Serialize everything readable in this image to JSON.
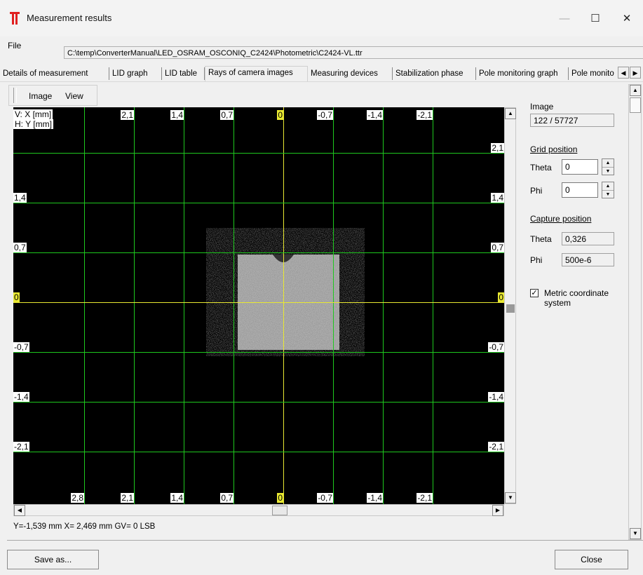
{
  "window": {
    "title": "Measurement results",
    "minimize_glyph": "—",
    "maximize_glyph": "☐",
    "close_glyph": "✕"
  },
  "file": {
    "label": "File",
    "path": "C:\\temp\\ConverterManual\\LED_OSRAM_OSCONIQ_C2424\\Photometric\\C2424-VL.ttr"
  },
  "tabs": [
    {
      "label": "Details of measurement"
    },
    {
      "label": "LID graph"
    },
    {
      "label": "LID table"
    },
    {
      "label": "Rays of camera images"
    },
    {
      "label": "Measuring devices"
    },
    {
      "label": "Stabilization phase"
    },
    {
      "label": "Pole monitoring graph"
    },
    {
      "label": "Pole monito"
    }
  ],
  "active_tab_index": 3,
  "menu": {
    "image": "Image",
    "view": "View"
  },
  "image_view": {
    "axis_v": "V: X [mm]",
    "axis_h": "H: Y [mm]",
    "top_labels": [
      "2,1",
      "1,4",
      "0,7",
      "0",
      "-0,7",
      "-1,4",
      "-2,1"
    ],
    "bottom_labels": [
      "2,8",
      "2,1",
      "1,4",
      "0,7",
      "0",
      "-0,7",
      "-1,4",
      "-2,1"
    ],
    "left_labels": [
      "1,4",
      "0,7",
      "0",
      "-0,7",
      "-1,4",
      "-2,1"
    ],
    "right_labels": [
      "2,1",
      "1,4",
      "0,7",
      "0",
      "-0,7",
      "-1,4",
      "-2,1"
    ],
    "grid_color": "#1ec81e",
    "axis_color": "#e8e832"
  },
  "status": {
    "text": "Y=-1,539 mm  X= 2,469 mm  GV= 0 LSB"
  },
  "panel": {
    "image_label": "Image",
    "image_value": "122 / 57727",
    "grid_position_label": "Grid position",
    "grid_theta_label": "Theta",
    "grid_theta_value": "0",
    "grid_phi_label": "Phi",
    "grid_phi_value": "0",
    "capture_position_label": "Capture position",
    "capture_theta_label": "Theta",
    "capture_theta_value": "0,326",
    "capture_phi_label": "Phi",
    "capture_phi_value": "500e-6",
    "metric_label": "Metric coordinate system",
    "metric_checked": true
  },
  "buttons": {
    "save_as": "Save as...",
    "close": "Close"
  }
}
